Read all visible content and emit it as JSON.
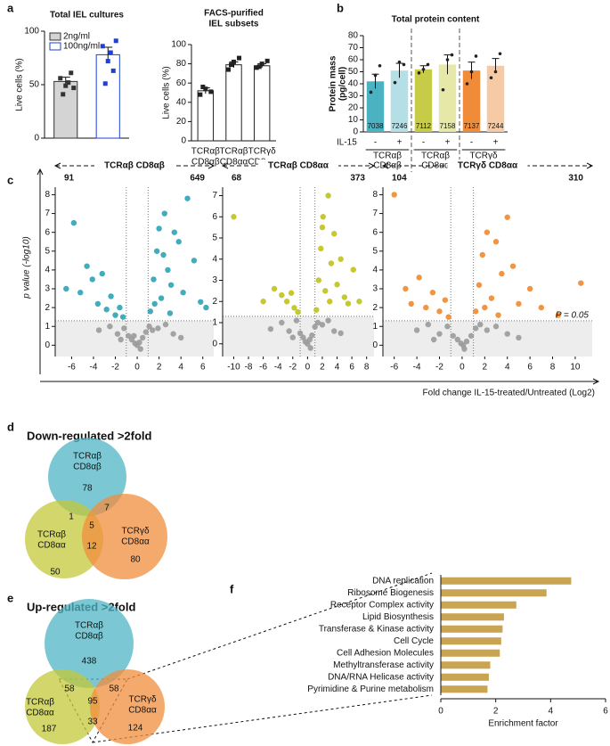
{
  "panel_labels": [
    "a",
    "b",
    "c",
    "d",
    "e",
    "f"
  ],
  "volcano_axes": {
    "y_label": "p value (-log10)",
    "x_label": "Fold change IL-15-treated/Untreated (Log2)"
  },
  "chart_data": [
    {
      "type": "dotbar",
      "title": [
        "Total IEL cultures"
      ],
      "y_label": "Live cells (%)",
      "ylim": [
        0,
        100
      ],
      "yticks": [
        0,
        50,
        100
      ],
      "series": [
        {
          "name": "2ng/ml",
          "color": "#d4d4d4",
          "edgecolor": "#333333",
          "values": [
            53
          ],
          "errors": [
            4
          ],
          "points": [
            [
              56,
              49,
              61,
              41,
              52,
              47
            ]
          ],
          "point_color": "#333333"
        },
        {
          "name": "100ng/ml",
          "color": "#ffffff",
          "edgecolor": "#2040d0",
          "values": [
            78
          ],
          "errors": [
            7
          ],
          "points": [
            [
              86,
              72,
              63,
              51,
              80,
              91
            ]
          ],
          "point_color": "#1f3fd6"
        }
      ]
    },
    {
      "type": "dotbar",
      "title": [
        "FACS-purified",
        "IEL subsets"
      ],
      "y_label": "Live cells (%)",
      "ylim": [
        0,
        100
      ],
      "yticks": [
        0,
        20,
        40,
        60,
        80,
        100
      ],
      "categories": [
        [
          "TCRαβ",
          "CD8αβ"
        ],
        [
          "TCRαβ",
          "CD8αα"
        ],
        [
          "TCRγδ",
          "CD8αα"
        ]
      ],
      "series": [
        {
          "color": "#ffffff",
          "edgecolor": "#222222",
          "values": [
            52,
            79,
            78
          ],
          "errors": [
            3,
            3,
            2
          ],
          "points": [
            [
              48,
              54,
              51,
              56
            ],
            [
              74,
              82,
              86,
              79
            ],
            [
              76,
              80,
              83,
              77
            ]
          ],
          "point_color": "#222222"
        }
      ]
    },
    {
      "type": "protein",
      "title": [
        "Total protein content"
      ],
      "y_label": [
        "Protein mass",
        "(pg/cell)"
      ],
      "ylim": [
        0,
        80
      ],
      "yticks": [
        0,
        10,
        20,
        30,
        40,
        50,
        60,
        70,
        80
      ],
      "values": [
        42,
        51,
        52,
        56,
        51,
        55
      ],
      "errors": [
        6,
        6,
        3,
        8,
        7,
        6
      ],
      "colors": [
        "#4ab2c1",
        "#b4dfe6",
        "#c6cc48",
        "#e5e8a6",
        "#f08b3a",
        "#f6caa5"
      ],
      "points": [
        [
          33,
          47,
          55
        ],
        [
          41,
          58,
          56
        ],
        [
          49,
          52,
          56
        ],
        [
          35,
          60,
          64
        ],
        [
          40,
          50,
          63
        ],
        [
          45,
          50,
          65
        ]
      ],
      "cell_counts": [
        7038,
        7246,
        7112,
        7158,
        7137,
        7244
      ],
      "treatment_label": "IL-15",
      "treatment": [
        "-",
        "+",
        "-",
        "+",
        "-",
        "+"
      ],
      "groups": [
        [
          "TCRαβ",
          "CD8αβ"
        ],
        [
          "TCRαβ",
          "CD8αα"
        ],
        [
          "TCRγδ",
          "CD8αα"
        ]
      ]
    },
    {
      "type": "volcano",
      "title": "TCRαβ CD8αβ",
      "down_count": 91,
      "up_count": 649,
      "xlim": [
        -7.5,
        7
      ],
      "ylim": [
        -0.6,
        8.4
      ],
      "xticks": [
        -6,
        -4,
        -2,
        0,
        2,
        4,
        6
      ],
      "yticks": [
        0,
        1,
        2,
        3,
        4,
        5,
        6,
        7,
        8
      ],
      "threshold": 1.3,
      "fold_lines": [
        -1,
        1
      ],
      "series": [
        {
          "color": "#9a9a9a",
          "x": [
            -3.5,
            -2.5,
            -1.8,
            -1.2,
            -0.8,
            -0.5,
            -0.2,
            0,
            0.2,
            0.5,
            0.8,
            1.1,
            1.4,
            1.9,
            2.6,
            3.3,
            4,
            -1.5,
            0.3,
            -0.3
          ],
          "y": [
            0.8,
            1,
            0.6,
            0.9,
            0.5,
            0.3,
            0.1,
            0,
            0.15,
            0.4,
            0.7,
            1,
            0.8,
            0.9,
            1.1,
            0.6,
            0.4,
            0.3,
            -0.2,
            0.5
          ]
        },
        {
          "color": "#2ba3b5",
          "x": [
            -6.5,
            -5.8,
            -5.2,
            -4.6,
            -4.1,
            -3.6,
            -3.2,
            -2.8,
            -2.4,
            -2,
            -1.6,
            -1.3,
            1.2,
            1.5,
            1.8,
            2,
            2.2,
            2.5,
            2.8,
            3.1,
            3.4,
            3.8,
            4.2,
            4.6,
            5.2,
            5.8,
            6.3,
            1.6,
            2.4,
            3
          ],
          "y": [
            3,
            6.5,
            2.8,
            4.2,
            3.5,
            2.2,
            3.8,
            1.9,
            2.6,
            1.6,
            2,
            1.5,
            1.8,
            3.5,
            5,
            6.2,
            2.5,
            7,
            4,
            3.2,
            6,
            5.5,
            2.8,
            7.8,
            4.5,
            2.3,
            2,
            2.2,
            4.8,
            1.7
          ]
        }
      ]
    },
    {
      "type": "volcano",
      "title": "TCRαβ CD8αα",
      "down_count": 68,
      "up_count": 373,
      "xlim": [
        -11.5,
        9
      ],
      "ylim": [
        -0.6,
        7.4
      ],
      "xticks": [
        -10,
        -8,
        -6,
        -4,
        -2,
        0,
        2,
        4,
        6,
        8
      ],
      "yticks": [
        0,
        1,
        2,
        3,
        4,
        5,
        6,
        7
      ],
      "threshold": 1.3,
      "fold_lines": [
        -1,
        1
      ],
      "series": [
        {
          "color": "#9a9a9a",
          "x": [
            -5,
            -3.5,
            -2.5,
            -1.5,
            -1,
            -0.6,
            -0.3,
            0,
            0.3,
            0.6,
            1,
            1.4,
            2,
            2.8,
            3.6,
            4.5,
            -2,
            0.4
          ],
          "y": [
            0.7,
            1,
            0.6,
            1.1,
            0.5,
            0.3,
            0.1,
            0,
            0.2,
            0.4,
            0.8,
            1,
            0.9,
            1.1,
            0.6,
            0.5,
            0.3,
            -0.2
          ]
        },
        {
          "color": "#bfc21b",
          "x": [
            -10,
            -6,
            -4.5,
            -3.5,
            -2.8,
            -2.2,
            -1.8,
            -1.3,
            1.2,
            1.5,
            1.8,
            2.1,
            2.4,
            2.8,
            3.2,
            3.6,
            4,
            4.5,
            5,
            5.5,
            6.2,
            7,
            2,
            3
          ],
          "y": [
            6,
            2,
            2.6,
            2.3,
            2,
            2.4,
            1.7,
            1.5,
            1.6,
            3,
            4.5,
            6,
            2.5,
            7,
            3.8,
            5.2,
            2.8,
            4,
            2.2,
            1.9,
            3.5,
            2,
            5.5,
            2
          ]
        }
      ]
    },
    {
      "type": "volcano",
      "title": "TCRγδ CD8αα",
      "down_count": 104,
      "up_count": 310,
      "xlim": [
        -7,
        11.5
      ],
      "ylim": [
        -0.6,
        8.4
      ],
      "xticks": [
        -6,
        -4,
        -2,
        0,
        2,
        4,
        6,
        8,
        10
      ],
      "yticks": [
        0,
        1,
        2,
        3,
        4,
        5,
        6,
        7,
        8
      ],
      "threshold": 1.3,
      "fold_lines": [
        -1,
        1
      ],
      "threshold_label": "P = 0.05",
      "series": [
        {
          "color": "#9a9a9a",
          "x": [
            -4,
            -3,
            -2,
            -1.3,
            -0.8,
            -0.4,
            -0.1,
            0.1,
            0.4,
            0.8,
            1.2,
            1.6,
            2.2,
            3,
            4,
            5,
            -2.5,
            0.2
          ],
          "y": [
            0.8,
            1.1,
            0.6,
            1,
            0.5,
            0.3,
            0.1,
            0,
            0.2,
            0.5,
            0.9,
            1.1,
            0.8,
            1,
            0.6,
            0.4,
            0.3,
            -0.2
          ]
        },
        {
          "color": "#f08a2e",
          "x": [
            -6,
            -5,
            -4.5,
            -3.8,
            -3.2,
            -2.6,
            -2,
            -1.5,
            -1.2,
            1.2,
            1.5,
            1.8,
            2.2,
            2.6,
            3,
            3.5,
            4,
            4.5,
            5,
            6,
            7,
            8.5,
            10.5,
            2,
            3.2
          ],
          "y": [
            8,
            3,
            2.2,
            3.6,
            2,
            2.8,
            1.8,
            2.4,
            1.5,
            1.8,
            3.2,
            4.8,
            6,
            2.5,
            5.5,
            3.8,
            6.8,
            4.2,
            2.2,
            3,
            2,
            1.6,
            3.3,
            2,
            1.6
          ]
        }
      ]
    },
    {
      "type": "venn",
      "title": "Down-regulated >2fold",
      "sets": [
        {
          "label": [
            "TCRαβ",
            "CD8αβ"
          ],
          "color": "#4fb5c5"
        },
        {
          "label": [
            "TCRαβ",
            "CD8αα"
          ],
          "color": "#c3c83a"
        },
        {
          "label": [
            "TCRγδ",
            "CD8αα"
          ],
          "color": "#f28e3c"
        }
      ],
      "values": [
        78,
        1,
        7,
        5,
        12,
        50,
        80
      ]
    },
    {
      "type": "venn",
      "title": "Up-regulated >2fold",
      "sets": [
        {
          "label": [
            "TCRαβ",
            "CD8αβ"
          ],
          "color": "#4fb5c5"
        },
        {
          "label": [
            "TCRαβ",
            "CD8αα"
          ],
          "color": "#c3c83a"
        },
        {
          "label": [
            "TCRγδ",
            "CD8αα"
          ],
          "color": "#f28e3c"
        }
      ],
      "values": [
        438,
        58,
        58,
        95,
        33,
        187,
        124
      ]
    },
    {
      "type": "barh",
      "x_label": "Enrichment factor",
      "xlim": [
        0,
        6
      ],
      "xticks": [
        0,
        2,
        4,
        6
      ],
      "color": "#c9a553",
      "categories": [
        "DNA replication",
        "Ribosome Biogenesis",
        "Receptor Complex activity",
        "Lipid Biosynthesis",
        "Transferase & Kinase activity",
        "Cell Cycle",
        "Cell Adhesion Molecules",
        "Methyltransferase activity",
        "DNA/RNA Helicase activity",
        "Pyrimidine & Purine metabolism"
      ],
      "values": [
        4.75,
        3.85,
        2.75,
        2.3,
        2.25,
        2.2,
        2.15,
        1.8,
        1.75,
        1.7
      ]
    }
  ]
}
